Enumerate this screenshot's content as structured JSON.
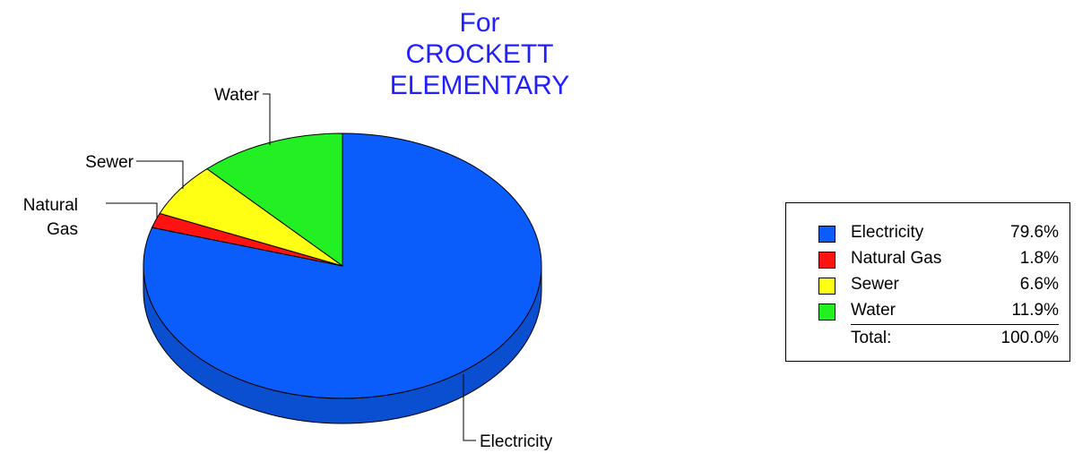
{
  "title": {
    "lines": [
      "For",
      "CROCKETT",
      "ELEMENTARY"
    ]
  },
  "chart_data": {
    "type": "pie",
    "title": "For CROCKETT ELEMENTARY",
    "style": "3d",
    "slices": [
      {
        "label": "Electricity",
        "legend_label": "Electricity",
        "value": 79.6,
        "percent_label": "79.6%",
        "color": "#0a5dfa",
        "side_color": "#0a4fd0"
      },
      {
        "label": "Natural Gas",
        "legend_label": "Natural Gas",
        "value": 1.8,
        "percent_label": "1.8%",
        "color": "#ff1212",
        "side_color": "#cc0000"
      },
      {
        "label": "Sewer",
        "legend_label": "Sewer",
        "value": 6.6,
        "percent_label": "6.6%",
        "color": "#ffff14",
        "side_color": "#d8d800"
      },
      {
        "label": "Water",
        "legend_label": "Water",
        "value": 11.9,
        "percent_label": "11.9%",
        "color": "#22f022",
        "side_color": "#10c010"
      }
    ],
    "slice_callouts": {
      "Electricity": "Electricity",
      "Natural Gas": [
        "Natural",
        "Gas"
      ],
      "Sewer": "Sewer",
      "Water": "Water"
    },
    "legend": {
      "placement": "right",
      "total_label": "Total:",
      "total_value": "100.0%"
    }
  }
}
